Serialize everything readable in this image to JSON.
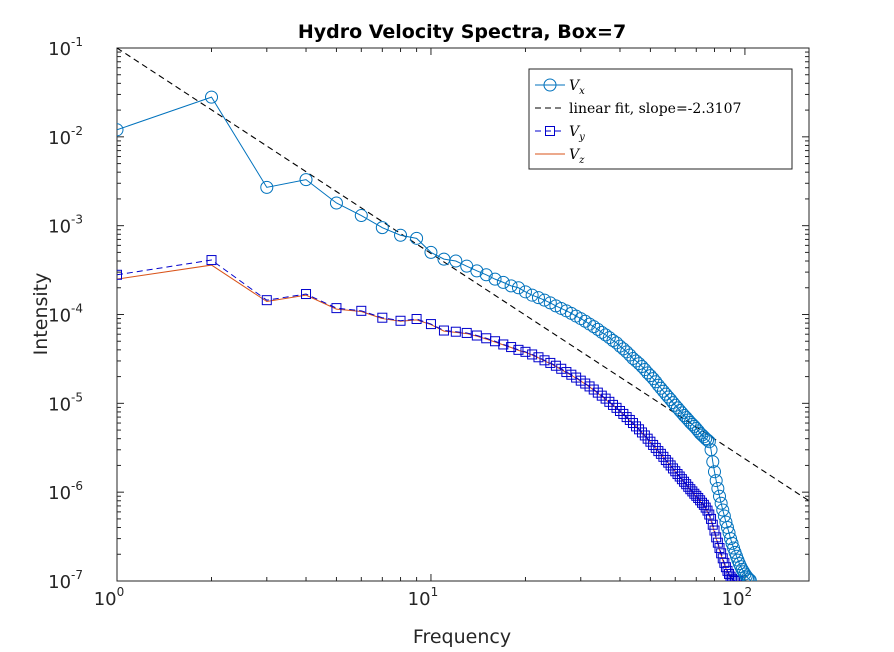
{
  "chart_data": {
    "type": "line",
    "title": "Hydro Velocity Spectra, Box=7",
    "xlabel": "Frequency",
    "ylabel": "Intensity",
    "xscale": "log",
    "yscale": "log",
    "xlim": [
      1,
      160
    ],
    "ylim": [
      1e-07,
      0.1
    ],
    "xticks": [
      {
        "base": "10",
        "exp": "0"
      },
      {
        "base": "10",
        "exp": "1"
      },
      {
        "base": "10",
        "exp": "2"
      }
    ],
    "yticks": [
      {
        "base": "10",
        "exp": "-7"
      },
      {
        "base": "10",
        "exp": "-6"
      },
      {
        "base": "10",
        "exp": "-5"
      },
      {
        "base": "10",
        "exp": "-4"
      },
      {
        "base": "10",
        "exp": "-3"
      },
      {
        "base": "10",
        "exp": "-2"
      },
      {
        "base": "10",
        "exp": "-1"
      }
    ],
    "legend_placement": "top-right",
    "series": [
      {
        "label": "V",
        "sub": "x",
        "color": "#0072BD",
        "marker": "circle",
        "line": "solid",
        "x": [
          1,
          2,
          3,
          4,
          5,
          6,
          7,
          8,
          9,
          10,
          11,
          12,
          13,
          14,
          15,
          16,
          17,
          18,
          19,
          20,
          21,
          22,
          23,
          24,
          25,
          26,
          27,
          28,
          29,
          30,
          31,
          32,
          33,
          34,
          35,
          36,
          37,
          38,
          39,
          40,
          41,
          42,
          43,
          44,
          45,
          46,
          47,
          48,
          49,
          50,
          51,
          52,
          53,
          54,
          55,
          56,
          57,
          58,
          59,
          60,
          61,
          62,
          63,
          64,
          65,
          66,
          67,
          68,
          69,
          70,
          71,
          72,
          73,
          74,
          75,
          76,
          77,
          78,
          79,
          80,
          81,
          82,
          83,
          84,
          85,
          86,
          87,
          88,
          89,
          90,
          91,
          92,
          93,
          94,
          95,
          96,
          97,
          98,
          99,
          100,
          101,
          102,
          103,
          104
        ],
        "y": [
          0.012,
          0.028,
          0.0027,
          0.0033,
          0.0018,
          0.0013,
          0.00095,
          0.00078,
          0.00072,
          0.0005,
          0.00042,
          0.0004,
          0.00035,
          0.00031,
          0.00028,
          0.00025,
          0.00023,
          0.00021,
          0.0002,
          0.00018,
          0.000165,
          0.000155,
          0.000145,
          0.000135,
          0.000125,
          0.000117,
          0.00011,
          0.000103,
          9.6e-05,
          9e-05,
          8.4e-05,
          7.8e-05,
          7.3e-05,
          6.8e-05,
          6.3e-05,
          5.9e-05,
          5.5e-05,
          5.1e-05,
          4.8e-05,
          4.4e-05,
          4.1e-05,
          3.8e-05,
          3.5e-05,
          3.2e-05,
          3e-05,
          2.8e-05,
          2.6e-05,
          2.4e-05,
          2.2e-05,
          2.05e-05,
          1.9e-05,
          1.75e-05,
          1.6e-05,
          1.48e-05,
          1.37e-05,
          1.27e-05,
          1.18e-05,
          1.1e-05,
          1.02e-05,
          9.5e-06,
          8.9e-06,
          8.3e-06,
          7.8e-06,
          7.3e-06,
          6.9e-06,
          6.5e-06,
          6.1e-06,
          5.8e-06,
          5.5e-06,
          5.2e-06,
          4.9e-06,
          4.6e-06,
          4.4e-06,
          4.2e-06,
          4e-06,
          3.85e-06,
          3.7e-06,
          3e-06,
          2.2e-06,
          1.7e-06,
          1.35e-06,
          1.1e-06,
          9e-07,
          7.5e-07,
          6.3e-07,
          5.4e-07,
          4.6e-07,
          4e-07,
          3.5e-07,
          3e-07,
          2.65e-07,
          2.35e-07,
          2.1e-07,
          1.9e-07,
          1.72e-07,
          1.57e-07,
          1.45e-07,
          1.35e-07,
          1.27e-07,
          1.2e-07,
          1.14e-07,
          1.09e-07,
          1.05e-07,
          1.02e-07
        ]
      },
      {
        "label": "linear fit, slope=-2.3107",
        "color": "#000000",
        "marker": "none",
        "line": "dashed",
        "x": [
          1,
          160
        ],
        "y": [
          0.1,
          8e-07
        ]
      },
      {
        "label": "V",
        "sub": "y",
        "color": "#0000CC",
        "marker": "square",
        "line": "dashed",
        "x": [
          1,
          2,
          3,
          4,
          5,
          6,
          7,
          8,
          9,
          10,
          11,
          12,
          13,
          14,
          15,
          16,
          17,
          18,
          19,
          20,
          21,
          22,
          23,
          24,
          25,
          26,
          27,
          28,
          29,
          30,
          31,
          32,
          33,
          34,
          35,
          36,
          37,
          38,
          39,
          40,
          41,
          42,
          43,
          44,
          45,
          46,
          47,
          48,
          49,
          50,
          51,
          52,
          53,
          54,
          55,
          56,
          57,
          58,
          59,
          60,
          61,
          62,
          63,
          64,
          65,
          66,
          67,
          68,
          69,
          70,
          71,
          72,
          73,
          74,
          75,
          76,
          77,
          78,
          79,
          80,
          81,
          82,
          83,
          84,
          85,
          86,
          87,
          88,
          89,
          90,
          91,
          92,
          93,
          94,
          95
        ],
        "y": [
          0.00028,
          0.00041,
          0.000145,
          0.00017,
          0.000118,
          0.00011,
          9.2e-05,
          8.5e-05,
          8.9e-05,
          7.8e-05,
          6.6e-05,
          6.4e-05,
          6.2e-05,
          5.8e-05,
          5.4e-05,
          5e-05,
          4.6e-05,
          4.3e-05,
          4e-05,
          3.8e-05,
          3.55e-05,
          3.3e-05,
          3.05e-05,
          2.85e-05,
          2.65e-05,
          2.45e-05,
          2.25e-05,
          2.1e-05,
          1.95e-05,
          1.8e-05,
          1.67e-05,
          1.55e-05,
          1.43e-05,
          1.32e-05,
          1.22e-05,
          1.13e-05,
          1.04e-05,
          9.6e-06,
          8.9e-06,
          8.2e-06,
          7.6e-06,
          7e-06,
          6.5e-06,
          6e-06,
          5.5e-06,
          5.1e-06,
          4.7e-06,
          4.35e-06,
          4e-06,
          3.7e-06,
          3.4e-06,
          3.15e-06,
          2.9e-06,
          2.7e-06,
          2.5e-06,
          2.3e-06,
          2.15e-06,
          2e-06,
          1.85e-06,
          1.72e-06,
          1.6e-06,
          1.5e-06,
          1.4e-06,
          1.31e-06,
          1.23e-06,
          1.15e-06,
          1.08e-06,
          1.02e-06,
          9.6e-07,
          9.1e-07,
          8.6e-07,
          8.1e-07,
          7.6e-07,
          7.2e-07,
          6.7e-07,
          6.2e-07,
          5.6e-07,
          5e-07,
          4.3e-07,
          3.7e-07,
          3.1e-07,
          2.7e-07,
          2.35e-07,
          2.05e-07,
          1.8e-07,
          1.6e-07,
          1.43e-07,
          1.3e-07,
          1.2e-07,
          1.12e-07,
          1.06e-07,
          1.02e-07,
          1e-07,
          1e-07,
          1e-07
        ]
      },
      {
        "label": "V",
        "sub": "z",
        "color": "#D95319",
        "marker": "none",
        "line": "solid",
        "x": [
          1,
          2,
          3,
          4,
          5,
          6,
          7,
          8,
          9,
          10,
          11,
          12,
          13,
          14,
          15,
          16,
          17,
          18,
          19,
          20,
          21,
          22,
          23,
          24,
          25,
          26,
          27,
          28,
          29,
          30,
          31,
          32,
          33,
          34,
          35,
          36,
          37,
          38,
          39,
          40,
          41,
          42,
          43,
          44,
          45,
          46,
          47,
          48,
          49,
          50,
          51,
          52,
          53,
          54,
          55,
          56,
          57,
          58,
          59,
          60,
          61,
          62,
          63,
          64,
          65,
          66,
          67,
          68,
          69,
          70,
          71,
          72,
          73,
          74,
          75,
          76,
          77,
          78,
          79,
          80,
          81,
          82,
          83,
          84,
          85,
          86,
          87,
          88,
          89,
          90,
          91,
          92,
          93,
          94,
          95
        ],
        "y": [
          0.00025,
          0.00036,
          0.00014,
          0.000165,
          0.000115,
          0.000108,
          9e-05,
          8.4e-05,
          8.7e-05,
          7.7e-05,
          6.5e-05,
          6.3e-05,
          6.1e-05,
          5.7e-05,
          5.3e-05,
          4.9e-05,
          4.55e-05,
          4.25e-05,
          3.95e-05,
          3.75e-05,
          3.5e-05,
          3.25e-05,
          3e-05,
          2.8e-05,
          2.6e-05,
          2.4e-05,
          2.22e-05,
          2.07e-05,
          1.92e-05,
          1.78e-05,
          1.65e-05,
          1.53e-05,
          1.41e-05,
          1.3e-05,
          1.2e-05,
          1.11e-05,
          1.02e-05,
          9.5e-06,
          8.8e-06,
          8.1e-06,
          7.5e-06,
          6.9e-06,
          6.4e-06,
          5.9e-06,
          5.45e-06,
          5.05e-06,
          4.65e-06,
          4.3e-06,
          3.95e-06,
          3.65e-06,
          3.37e-06,
          3.12e-06,
          2.88e-06,
          2.68e-06,
          2.48e-06,
          2.28e-06,
          2.13e-06,
          1.98e-06,
          1.83e-06,
          1.7e-06,
          1.58e-06,
          1.48e-06,
          1.38e-06,
          1.29e-06,
          1.21e-06,
          1.13e-06,
          1.06e-06,
          1e-06,
          9.4e-07,
          8.9e-07,
          8.4e-07,
          7.9e-07,
          7.4e-07,
          7e-07,
          6.5e-07,
          6e-07,
          5.4e-07,
          4.8e-07,
          4.1e-07,
          3.5e-07,
          3e-07,
          2.6e-07,
          2.25e-07,
          1.95e-07,
          1.72e-07,
          1.53e-07,
          1.38e-07,
          1.26e-07,
          1.17e-07,
          1.1e-07,
          1.05e-07,
          1.01e-07,
          1e-07,
          1e-07,
          1e-07
        ]
      }
    ]
  }
}
